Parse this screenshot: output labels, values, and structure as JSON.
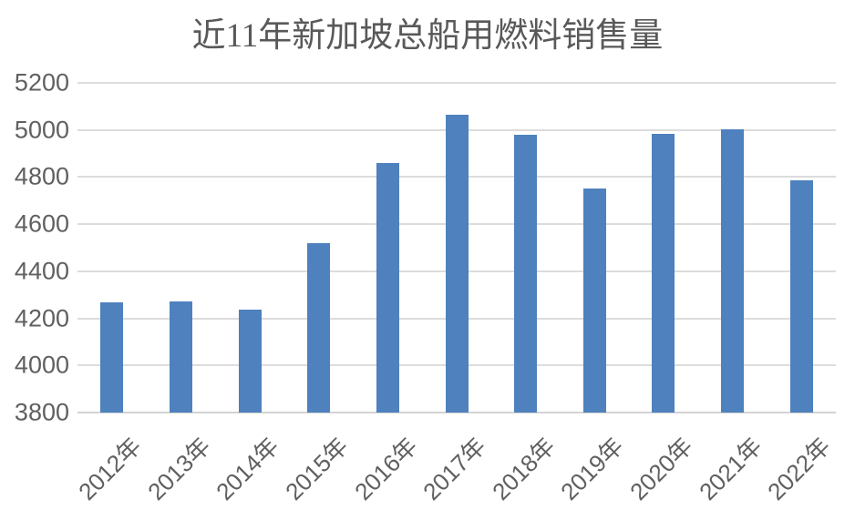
{
  "chart_data": {
    "type": "bar",
    "title": "近11年新加坡总船用燃料销售量",
    "categories": [
      "2012年",
      "2013年",
      "2014年",
      "2015年",
      "2016年",
      "2017年",
      "2018年",
      "2019年",
      "2020年",
      "2021年",
      "2022年"
    ],
    "values": [
      4268,
      4270,
      4237,
      4518,
      4861,
      5064,
      4980,
      4750,
      4983,
      5004,
      4788
    ],
    "xlabel": "",
    "ylabel": "",
    "ylim": [
      3800,
      5200
    ],
    "ytick_step": 200,
    "yticks": [
      3800,
      4000,
      4200,
      4400,
      4600,
      4800,
      5000,
      5200
    ],
    "grid": true,
    "legend_position": "none",
    "bar_color": "#4E81BD",
    "gridline_color": "#DCDCDC",
    "axis_line_color": "#D3D3D3",
    "label_color": "#606060",
    "title_color": "#595959",
    "background_color": "#FFFFFF"
  }
}
